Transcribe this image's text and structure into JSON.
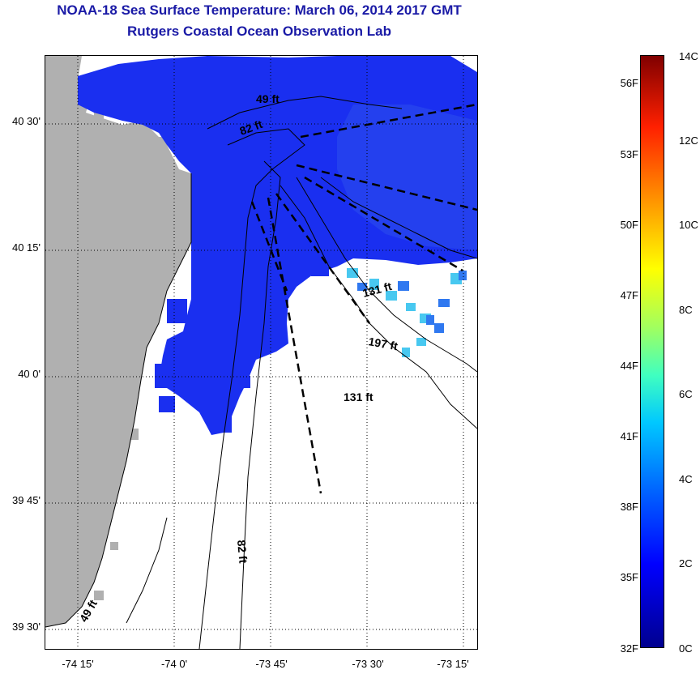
{
  "title": {
    "line1": "NOAA-18 Sea Surface Temperature:  March 06, 2014 2017 GMT",
    "line2": "Rutgers Coastal Ocean Observation Lab"
  },
  "map": {
    "lat_ticks": [
      "40 30'",
      "40 15'",
      "40 0'",
      "39 45'",
      "39 30'"
    ],
    "lon_ticks": [
      "-74 15'",
      "-74 0'",
      "-73 45'",
      "-73 30'",
      "-73 15'"
    ],
    "contour_labels": [
      "49 ft",
      "82 ft",
      "131 ft",
      "197 ft",
      "131 ft",
      "82 ft",
      "49 ft"
    ],
    "colors": {
      "land": "#b0b0b0",
      "cold_water": "#1a2ff0",
      "mid_water": "#2f78f0",
      "warm_water": "#48c8f0"
    }
  },
  "colorbar": {
    "fahrenheit": [
      "56F",
      "53F",
      "50F",
      "47F",
      "44F",
      "41F",
      "38F",
      "35F",
      "32F"
    ],
    "celsius": [
      "14C",
      "12C",
      "10C",
      "8C",
      "6C",
      "4C",
      "2C",
      "0C"
    ]
  }
}
